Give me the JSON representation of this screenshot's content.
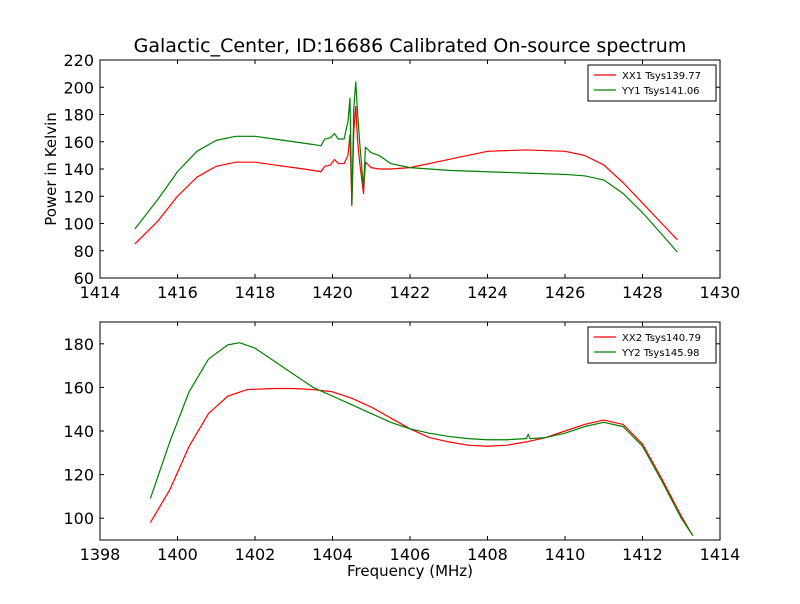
{
  "chart_data": [
    {
      "type": "line",
      "title": "Galactic_Center, ID:16686 Calibrated On-source spectrum",
      "xlabel": "",
      "ylabel": "Power in Kelvin",
      "xlim": [
        1414,
        1430
      ],
      "ylim": [
        60,
        220
      ],
      "xticks": [
        "1414",
        "1416",
        "1418",
        "1420",
        "1422",
        "1424",
        "1426",
        "1428",
        "1430"
      ],
      "yticks": [
        "60",
        "80",
        "100",
        "120",
        "140",
        "160",
        "180",
        "200",
        "220"
      ],
      "legend_position": "top-right",
      "grid": false,
      "series": [
        {
          "name": "XX1 Tsys139.77",
          "color": "#ff0000",
          "points": [
            [
              1414.9,
              85
            ],
            [
              1415.5,
              102
            ],
            [
              1416.0,
              120
            ],
            [
              1416.5,
              134
            ],
            [
              1417.0,
              142
            ],
            [
              1417.5,
              145
            ],
            [
              1418.0,
              145
            ],
            [
              1418.5,
              143
            ],
            [
              1419.0,
              141
            ],
            [
              1419.5,
              139
            ],
            [
              1419.7,
              138
            ],
            [
              1419.8,
              142
            ],
            [
              1419.95,
              143
            ],
            [
              1420.05,
              147
            ],
            [
              1420.15,
              144
            ],
            [
              1420.3,
              144
            ],
            [
              1420.4,
              150
            ],
            [
              1420.45,
              165
            ],
            [
              1420.5,
              113
            ],
            [
              1420.55,
              168
            ],
            [
              1420.6,
              186
            ],
            [
              1420.65,
              160
            ],
            [
              1420.7,
              145
            ],
            [
              1420.8,
              122
            ],
            [
              1420.85,
              145
            ],
            [
              1421.0,
              141
            ],
            [
              1421.2,
              140
            ],
            [
              1421.5,
              140
            ],
            [
              1422.0,
              141
            ],
            [
              1423.0,
              147
            ],
            [
              1424.0,
              153
            ],
            [
              1425.0,
              154
            ],
            [
              1426.0,
              153
            ],
            [
              1426.5,
              150
            ],
            [
              1427.0,
              143
            ],
            [
              1427.5,
              130
            ],
            [
              1428.0,
              115
            ],
            [
              1428.5,
              100
            ],
            [
              1428.9,
              88
            ]
          ]
        },
        {
          "name": "YY1 Tsys141.06",
          "color": "#008000",
          "points": [
            [
              1414.9,
              96
            ],
            [
              1415.5,
              118
            ],
            [
              1416.0,
              138
            ],
            [
              1416.5,
              153
            ],
            [
              1417.0,
              161
            ],
            [
              1417.5,
              164
            ],
            [
              1418.0,
              164
            ],
            [
              1418.5,
              162
            ],
            [
              1419.0,
              160
            ],
            [
              1419.5,
              158
            ],
            [
              1419.7,
              157
            ],
            [
              1419.8,
              162
            ],
            [
              1419.95,
              163
            ],
            [
              1420.05,
              166
            ],
            [
              1420.15,
              162
            ],
            [
              1420.3,
              162
            ],
            [
              1420.4,
              175
            ],
            [
              1420.45,
              192
            ],
            [
              1420.5,
              114
            ],
            [
              1420.55,
              185
            ],
            [
              1420.6,
              204
            ],
            [
              1420.65,
              180
            ],
            [
              1420.7,
              160
            ],
            [
              1420.8,
              126
            ],
            [
              1420.85,
              156
            ],
            [
              1421.0,
              152
            ],
            [
              1421.2,
              150
            ],
            [
              1421.5,
              144
            ],
            [
              1422.0,
              141
            ],
            [
              1423.0,
              139
            ],
            [
              1424.0,
              138
            ],
            [
              1425.0,
              137
            ],
            [
              1426.0,
              136
            ],
            [
              1426.5,
              135
            ],
            [
              1427.0,
              132
            ],
            [
              1427.5,
              122
            ],
            [
              1428.0,
              108
            ],
            [
              1428.5,
              92
            ],
            [
              1428.9,
              79
            ]
          ]
        }
      ]
    },
    {
      "type": "line",
      "title": "",
      "xlabel": "Frequency (MHz)",
      "ylabel": "",
      "xlim": [
        1398,
        1414
      ],
      "ylim": [
        90,
        190
      ],
      "xticks": [
        "1398",
        "1400",
        "1402",
        "1404",
        "1406",
        "1408",
        "1410",
        "1412",
        "1414"
      ],
      "yticks": [
        "100",
        "120",
        "140",
        "160",
        "180"
      ],
      "legend_position": "top-right",
      "grid": false,
      "series": [
        {
          "name": "XX2 Tsys140.79",
          "color": "#ff0000",
          "points": [
            [
              1399.3,
              98
            ],
            [
              1399.8,
              113
            ],
            [
              1400.3,
              133
            ],
            [
              1400.8,
              148
            ],
            [
              1401.3,
              156
            ],
            [
              1401.8,
              159
            ],
            [
              1402.5,
              159.5
            ],
            [
              1403.0,
              159.5
            ],
            [
              1403.5,
              159
            ],
            [
              1404.0,
              158
            ],
            [
              1404.5,
              155
            ],
            [
              1405.0,
              151
            ],
            [
              1405.5,
              146
            ],
            [
              1406.0,
              141
            ],
            [
              1406.5,
              137
            ],
            [
              1407.0,
              135
            ],
            [
              1407.5,
              133.5
            ],
            [
              1408.0,
              133
            ],
            [
              1408.5,
              133.5
            ],
            [
              1409.0,
              135
            ],
            [
              1409.5,
              137
            ],
            [
              1410.0,
              140
            ],
            [
              1410.5,
              143
            ],
            [
              1411.0,
              145
            ],
            [
              1411.5,
              143
            ],
            [
              1412.0,
              134
            ],
            [
              1412.5,
              118
            ],
            [
              1413.0,
              101
            ],
            [
              1413.3,
              92
            ]
          ]
        },
        {
          "name": "YY2 Tsys145.98",
          "color": "#008000",
          "points": [
            [
              1399.3,
              109
            ],
            [
              1399.8,
              135
            ],
            [
              1400.3,
              158
            ],
            [
              1400.8,
              173
            ],
            [
              1401.3,
              179.5
            ],
            [
              1401.6,
              180.5
            ],
            [
              1402.0,
              178
            ],
            [
              1402.5,
              172
            ],
            [
              1403.0,
              166
            ],
            [
              1403.5,
              160
            ],
            [
              1404.0,
              156
            ],
            [
              1404.5,
              152
            ],
            [
              1405.0,
              148
            ],
            [
              1405.5,
              144
            ],
            [
              1406.0,
              141
            ],
            [
              1406.5,
              139
            ],
            [
              1407.0,
              137.5
            ],
            [
              1407.5,
              136.5
            ],
            [
              1408.0,
              136
            ],
            [
              1408.5,
              136
            ],
            [
              1409.0,
              136.5
            ],
            [
              1409.05,
              138.5
            ],
            [
              1409.1,
              136.5
            ],
            [
              1409.5,
              137
            ],
            [
              1410.0,
              139
            ],
            [
              1410.5,
              142
            ],
            [
              1411.0,
              144
            ],
            [
              1411.5,
              142
            ],
            [
              1412.0,
              133
            ],
            [
              1412.5,
              117
            ],
            [
              1413.0,
              100
            ],
            [
              1413.3,
              92
            ]
          ]
        }
      ]
    }
  ]
}
